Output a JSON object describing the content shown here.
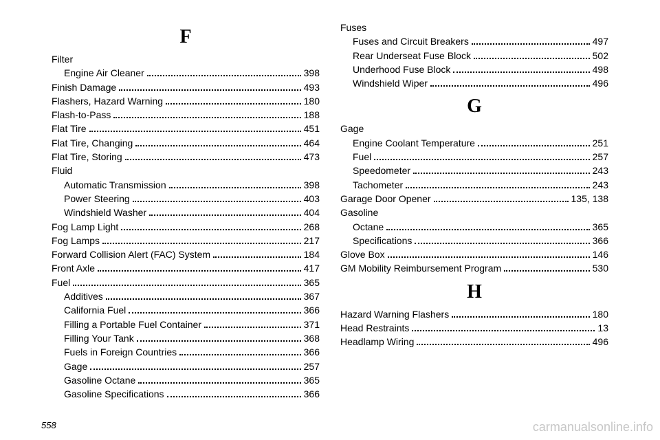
{
  "pageNumber": "558",
  "watermark": "carmanualsonline.info",
  "left": [
    {
      "type": "letter",
      "text": "F"
    },
    {
      "type": "group",
      "label": "Filter"
    },
    {
      "type": "entry",
      "indent": 1,
      "label": "Engine Air Cleaner",
      "page": "398"
    },
    {
      "type": "entry",
      "indent": 0,
      "label": "Finish Damage",
      "page": "493"
    },
    {
      "type": "entry",
      "indent": 0,
      "label": "Flashers, Hazard Warning",
      "page": "180"
    },
    {
      "type": "entry",
      "indent": 0,
      "label": "Flash-to-Pass",
      "page": "188"
    },
    {
      "type": "entry",
      "indent": 0,
      "label": "Flat Tire",
      "page": "451"
    },
    {
      "type": "entry",
      "indent": 0,
      "label": "Flat Tire, Changing",
      "page": "464"
    },
    {
      "type": "entry",
      "indent": 0,
      "label": "Flat Tire, Storing",
      "page": "473"
    },
    {
      "type": "group",
      "label": "Fluid"
    },
    {
      "type": "entry",
      "indent": 1,
      "label": "Automatic Transmission",
      "page": "398"
    },
    {
      "type": "entry",
      "indent": 1,
      "label": "Power Steering",
      "page": "403"
    },
    {
      "type": "entry",
      "indent": 1,
      "label": "Windshield Washer",
      "page": "404"
    },
    {
      "type": "entry",
      "indent": 0,
      "label": "Fog Lamp Light",
      "page": "268"
    },
    {
      "type": "entry",
      "indent": 0,
      "label": "Fog Lamps",
      "page": "217"
    },
    {
      "type": "entry",
      "indent": 0,
      "label": "Forward Collision Alert (FAC) System",
      "page": "184"
    },
    {
      "type": "entry",
      "indent": 0,
      "label": "Front Axle",
      "page": "417"
    },
    {
      "type": "entry",
      "indent": 0,
      "label": "Fuel",
      "page": "365"
    },
    {
      "type": "entry",
      "indent": 1,
      "label": "Additives",
      "page": "367"
    },
    {
      "type": "entry",
      "indent": 1,
      "label": "California Fuel",
      "page": "366"
    },
    {
      "type": "entry",
      "indent": 1,
      "label": "Filling a Portable Fuel Container",
      "page": "371"
    },
    {
      "type": "entry",
      "indent": 1,
      "label": "Filling Your Tank",
      "page": "368"
    },
    {
      "type": "entry",
      "indent": 1,
      "label": "Fuels in Foreign Countries",
      "page": "366"
    },
    {
      "type": "entry",
      "indent": 1,
      "label": "Gage",
      "page": "257"
    },
    {
      "type": "entry",
      "indent": 1,
      "label": "Gasoline Octane",
      "page": "365"
    },
    {
      "type": "entry",
      "indent": 1,
      "label": "Gasoline Specifications",
      "page": "366"
    }
  ],
  "right": [
    {
      "type": "group",
      "label": "Fuses"
    },
    {
      "type": "entry",
      "indent": 1,
      "label": "Fuses and Circuit Breakers",
      "page": "497"
    },
    {
      "type": "entry",
      "indent": 1,
      "label": "Rear Underseat Fuse Block",
      "page": "502"
    },
    {
      "type": "entry",
      "indent": 1,
      "label": "Underhood Fuse Block",
      "page": "498"
    },
    {
      "type": "entry",
      "indent": 1,
      "label": "Windshield Wiper",
      "page": "496"
    },
    {
      "type": "letter",
      "text": "G"
    },
    {
      "type": "group",
      "label": "Gage"
    },
    {
      "type": "entry",
      "indent": 1,
      "label": "Engine Coolant Temperature",
      "page": "251"
    },
    {
      "type": "entry",
      "indent": 1,
      "label": "Fuel",
      "page": "257"
    },
    {
      "type": "entry",
      "indent": 1,
      "label": "Speedometer",
      "page": "243"
    },
    {
      "type": "entry",
      "indent": 1,
      "label": "Tachometer",
      "page": "243"
    },
    {
      "type": "entry",
      "indent": 0,
      "label": "Garage Door Opener",
      "page": "135, 138"
    },
    {
      "type": "group",
      "label": "Gasoline"
    },
    {
      "type": "entry",
      "indent": 1,
      "label": "Octane",
      "page": "365"
    },
    {
      "type": "entry",
      "indent": 1,
      "label": "Specifications",
      "page": "366"
    },
    {
      "type": "entry",
      "indent": 0,
      "label": "Glove Box",
      "page": "146"
    },
    {
      "type": "entry",
      "indent": 0,
      "label": "GM Mobility Reimbursement Program",
      "page": "530"
    },
    {
      "type": "letter",
      "text": "H"
    },
    {
      "type": "entry",
      "indent": 0,
      "label": "Hazard Warning Flashers",
      "page": "180"
    },
    {
      "type": "entry",
      "indent": 0,
      "label": "Head Restraints",
      "page": "13"
    },
    {
      "type": "entry",
      "indent": 0,
      "label": "Headlamp Wiring",
      "page": "496"
    }
  ]
}
